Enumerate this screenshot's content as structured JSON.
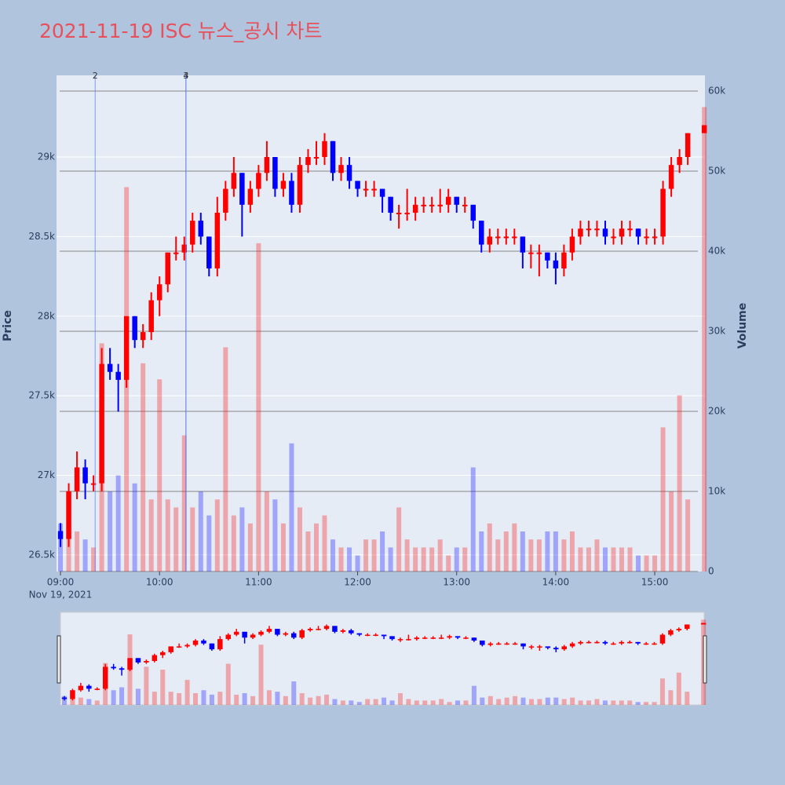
{
  "chart_data": {
    "type": "candlestick",
    "title": "2021-11-19 ISC 뉴스_공시 차트",
    "y_label": "Price",
    "y2_label": "Volume",
    "x_date_label": "Nov 19, 2021",
    "increasing_color": "#ff0000",
    "decreasing_color": "#0000ff",
    "x": [
      "2021-11-19 09:00",
      "2021-11-19 09:05",
      "2021-11-19 09:10",
      "2021-11-19 09:15",
      "2021-11-19 09:20",
      "2021-11-19 09:25",
      "2021-11-19 09:30",
      "2021-11-19 09:35",
      "2021-11-19 09:40",
      "2021-11-19 09:45",
      "2021-11-19 09:50",
      "2021-11-19 09:55",
      "2021-11-19 10:00",
      "2021-11-19 10:05",
      "2021-11-19 10:10",
      "2021-11-19 10:15",
      "2021-11-19 10:20",
      "2021-11-19 10:25",
      "2021-11-19 10:30",
      "2021-11-19 10:35",
      "2021-11-19 10:40",
      "2021-11-19 10:45",
      "2021-11-19 10:50",
      "2021-11-19 10:55",
      "2021-11-19 11:00",
      "2021-11-19 11:05",
      "2021-11-19 11:10",
      "2021-11-19 11:15",
      "2021-11-19 11:20",
      "2021-11-19 11:25",
      "2021-11-19 11:30",
      "2021-11-19 11:35",
      "2021-11-19 11:40",
      "2021-11-19 11:45",
      "2021-11-19 11:50",
      "2021-11-19 11:55",
      "2021-11-19 12:00",
      "2021-11-19 12:05",
      "2021-11-19 12:10",
      "2021-11-19 12:15",
      "2021-11-19 12:20",
      "2021-11-19 12:25",
      "2021-11-19 12:30",
      "2021-11-19 12:35",
      "2021-11-19 12:40",
      "2021-11-19 12:45",
      "2021-11-19 12:50",
      "2021-11-19 12:55",
      "2021-11-19 13:00",
      "2021-11-19 13:05",
      "2021-11-19 13:10",
      "2021-11-19 13:15",
      "2021-11-19 13:20",
      "2021-11-19 13:25",
      "2021-11-19 13:30",
      "2021-11-19 13:35",
      "2021-11-19 13:40",
      "2021-11-19 13:45",
      "2021-11-19 13:50",
      "2021-11-19 13:55",
      "2021-11-19 14:00",
      "2021-11-19 14:05",
      "2021-11-19 14:10",
      "2021-11-19 14:15",
      "2021-11-19 14:20",
      "2021-11-19 14:25",
      "2021-11-19 14:30",
      "2021-11-19 14:35",
      "2021-11-19 14:40",
      "2021-11-19 14:45",
      "2021-11-19 14:50",
      "2021-11-19 14:55",
      "2021-11-19 15:00",
      "2021-11-19 15:05",
      "2021-11-19 15:10",
      "2021-11-19 15:15",
      "2021-11-19 15:20",
      "2021-11-19 15:30"
    ],
    "open": [
      26650,
      26600,
      26900,
      27050,
      26950,
      26950,
      27700,
      27650,
      27600,
      28000,
      27850,
      27900,
      28100,
      28200,
      28400,
      28400,
      28450,
      28600,
      28500,
      28300,
      28650,
      28800,
      28900,
      28700,
      28800,
      28900,
      29000,
      28800,
      28850,
      28700,
      28950,
      29000,
      29000,
      29100,
      28900,
      28950,
      28850,
      28800,
      28800,
      28800,
      28750,
      28650,
      28650,
      28650,
      28700,
      28700,
      28700,
      28700,
      28750,
      28700,
      28700,
      28600,
      28450,
      28500,
      28500,
      28500,
      28500,
      28400,
      28400,
      28400,
      28350,
      28300,
      28400,
      28500,
      28550,
      28550,
      28550,
      28500,
      28500,
      28550,
      28550,
      28500,
      28500,
      28500,
      28800,
      28950,
      29000,
      29150
    ],
    "high": [
      26700,
      26950,
      27150,
      27100,
      27000,
      27800,
      27800,
      27700,
      28000,
      28000,
      27950,
      28150,
      28250,
      28400,
      28500,
      28500,
      28650,
      28650,
      28500,
      28750,
      28850,
      29000,
      28900,
      28850,
      28950,
      29100,
      29000,
      28900,
      28900,
      29000,
      29050,
      29100,
      29150,
      29100,
      29000,
      29000,
      28850,
      28850,
      28850,
      28800,
      28750,
      28700,
      28800,
      28750,
      28750,
      28750,
      28800,
      28800,
      28750,
      28750,
      28700,
      28600,
      28550,
      28550,
      28550,
      28550,
      28500,
      28450,
      28450,
      28400,
      28400,
      28450,
      28550,
      28600,
      28600,
      28600,
      28600,
      28550,
      28600,
      28600,
      28550,
      28550,
      28550,
      28850,
      29000,
      29050,
      29150,
      29200
    ],
    "low": [
      26550,
      26550,
      26850,
      26850,
      26900,
      26900,
      27600,
      27400,
      27550,
      27800,
      27800,
      27850,
      28000,
      28150,
      28350,
      28350,
      28400,
      28450,
      28250,
      28250,
      28600,
      28750,
      28500,
      28650,
      28750,
      28850,
      28750,
      28750,
      28650,
      28650,
      28900,
      28950,
      28950,
      28850,
      28850,
      28800,
      28750,
      28750,
      28750,
      28650,
      28600,
      28550,
      28600,
      28600,
      28650,
      28650,
      28650,
      28650,
      28650,
      28650,
      28550,
      28400,
      28400,
      28450,
      28450,
      28450,
      28300,
      28300,
      28250,
      28300,
      28200,
      28250,
      28350,
      28450,
      28500,
      28500,
      28450,
      28450,
      28450,
      28500,
      28450,
      28450,
      28450,
      28450,
      28750,
      28900,
      28950,
      29150
    ],
    "close": [
      26600,
      26900,
      27050,
      26950,
      26950,
      27700,
      27650,
      27600,
      28000,
      27850,
      27900,
      28100,
      28200,
      28400,
      28400,
      28450,
      28600,
      28500,
      28300,
      28650,
      28800,
      28900,
      28700,
      28800,
      28900,
      29000,
      28800,
      28850,
      28700,
      28950,
      29000,
      29000,
      29100,
      28900,
      28950,
      28850,
      28800,
      28800,
      28800,
      28750,
      28650,
      28650,
      28650,
      28700,
      28700,
      28700,
      28700,
      28750,
      28700,
      28700,
      28600,
      28450,
      28500,
      28500,
      28500,
      28500,
      28400,
      28400,
      28400,
      28350,
      28300,
      28400,
      28500,
      28550,
      28550,
      28550,
      28500,
      28500,
      28550,
      28550,
      28500,
      28500,
      28500,
      28800,
      28950,
      29000,
      29150,
      29200
    ],
    "volume": [
      6000,
      8000,
      5000,
      4000,
      3000,
      28500,
      10000,
      12000,
      48000,
      11000,
      26000,
      9000,
      24000,
      9000,
      8000,
      17000,
      8000,
      10000,
      7000,
      9000,
      28000,
      7000,
      8000,
      6000,
      41000,
      10000,
      9000,
      6000,
      16000,
      8000,
      5000,
      6000,
      7000,
      4000,
      3000,
      3000,
      2000,
      4000,
      4000,
      5000,
      3000,
      8000,
      4000,
      3000,
      3000,
      3000,
      4000,
      2000,
      3000,
      3000,
      13000,
      5000,
      6000,
      4000,
      5000,
      6000,
      5000,
      4000,
      4000,
      5000,
      5000,
      4000,
      5000,
      3000,
      3000,
      4000,
      3000,
      3000,
      3000,
      3000,
      2000,
      2000,
      2000,
      18000,
      10000,
      22000,
      9000,
      58000
    ],
    "annotations": [
      {
        "x": "2021-11-19 09:21",
        "label": "2"
      },
      {
        "x": "2021-11-19 10:16",
        "label": "3"
      },
      {
        "x": "2021-11-19 10:16",
        "label": "4"
      }
    ],
    "xlim": [
      "2021-11-19 08:57:36",
      "2021-11-19 15:30:24"
    ],
    "xticks": [
      {
        "value": "2021-11-19 09:00",
        "label": "09:00"
      },
      {
        "value": "2021-11-19 10:00",
        "label": "10:00"
      },
      {
        "value": "2021-11-19 11:00",
        "label": "11:00"
      },
      {
        "value": "2021-11-19 12:00",
        "label": "12:00"
      },
      {
        "value": "2021-11-19 13:00",
        "label": "13:00"
      },
      {
        "value": "2021-11-19 14:00",
        "label": "14:00"
      },
      {
        "value": "2021-11-19 15:00",
        "label": "15:00"
      }
    ],
    "ylim": [
      26396,
      29513
    ],
    "yticks": [
      {
        "value": 26500,
        "label": "26.5k"
      },
      {
        "value": 27000,
        "label": "27k"
      },
      {
        "value": 27500,
        "label": "27.5k"
      },
      {
        "value": 28000,
        "label": "28k"
      },
      {
        "value": 28500,
        "label": "28.5k"
      },
      {
        "value": 29000,
        "label": "29k"
      }
    ],
    "y2lim": [
      0,
      61960
    ],
    "y2ticks": [
      0,
      {
        "value": 10000,
        "label": "10k"
      },
      {
        "value": 20000,
        "label": "20k"
      },
      {
        "value": 30000,
        "label": "30k"
      },
      {
        "value": 40000,
        "label": "40k"
      },
      {
        "value": 50000,
        "label": "50k"
      },
      {
        "value": 60000,
        "label": "60k"
      }
    ],
    "grid": true,
    "range_slider": true
  }
}
